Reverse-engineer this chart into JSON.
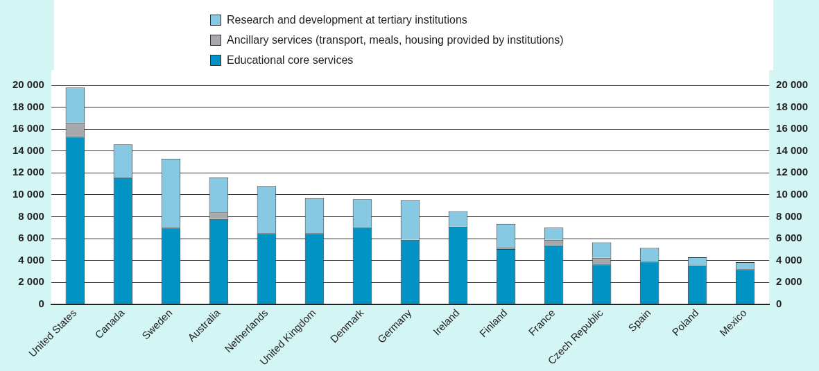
{
  "chart_data": {
    "type": "bar",
    "stacked": true,
    "legend": "top",
    "grid": "y",
    "categories": [
      "United States",
      "Canada",
      "Sweden",
      "Australia",
      "Netherlands",
      "United Kingdom",
      "Denmark",
      "Germany",
      "Ireland",
      "Finland",
      "France",
      "Czech Republic",
      "Spain",
      "Poland",
      "Mexico"
    ],
    "series": [
      {
        "name": "Educational core services",
        "color": "#0093c4",
        "values": [
          15300,
          11600,
          7000,
          7800,
          6500,
          6500,
          7050,
          5900,
          7100,
          5050,
          5400,
          3650,
          3900,
          3550,
          3200
        ]
      },
      {
        "name": "Ancillary services (transport, meals, housing provided by institutions)",
        "color": "#a7a9ac",
        "values": [
          1300,
          0,
          0,
          600,
          0,
          0,
          0,
          0,
          0,
          150,
          500,
          600,
          0,
          0,
          0
        ]
      },
      {
        "name": "Research and development at tertiary institutions",
        "color": "#87c9e3",
        "values": [
          3200,
          3000,
          6300,
          3200,
          4300,
          3200,
          2550,
          3600,
          1400,
          2150,
          1100,
          1400,
          1250,
          750,
          650
        ]
      }
    ],
    "ylim": [
      0,
      20000
    ],
    "yticks": [
      0,
      {
        "value": 2000,
        "label": "2 000"
      },
      {
        "value": 4000,
        "label": "4 000"
      },
      {
        "value": 6000,
        "label": "6 000"
      },
      {
        "value": 8000,
        "label": "8 000"
      },
      {
        "value": 10000,
        "label": "10 000"
      },
      {
        "value": 12000,
        "label": "12 000"
      },
      {
        "value": 14000,
        "label": "14 000"
      },
      {
        "value": 16000,
        "label": "16 000"
      },
      {
        "value": 18000,
        "label": "18 000"
      },
      {
        "value": 20000,
        "label": "20 000"
      }
    ],
    "y2lim": [
      0,
      20000
    ],
    "y2ticks": [
      0,
      {
        "value": 2000,
        "label": "2 000"
      },
      {
        "value": 4000,
        "label": "4 000"
      },
      {
        "value": 6000,
        "label": "6 000"
      },
      {
        "value": 8000,
        "label": "8 000"
      },
      {
        "value": 10000,
        "label": "10 000"
      },
      {
        "value": 12000,
        "label": "12 000"
      },
      {
        "value": 14000,
        "label": "14 000"
      },
      {
        "value": 16000,
        "label": "16 000"
      },
      {
        "value": 18000,
        "label": "18 000"
      },
      {
        "value": 20000,
        "label": "20 000"
      }
    ]
  }
}
